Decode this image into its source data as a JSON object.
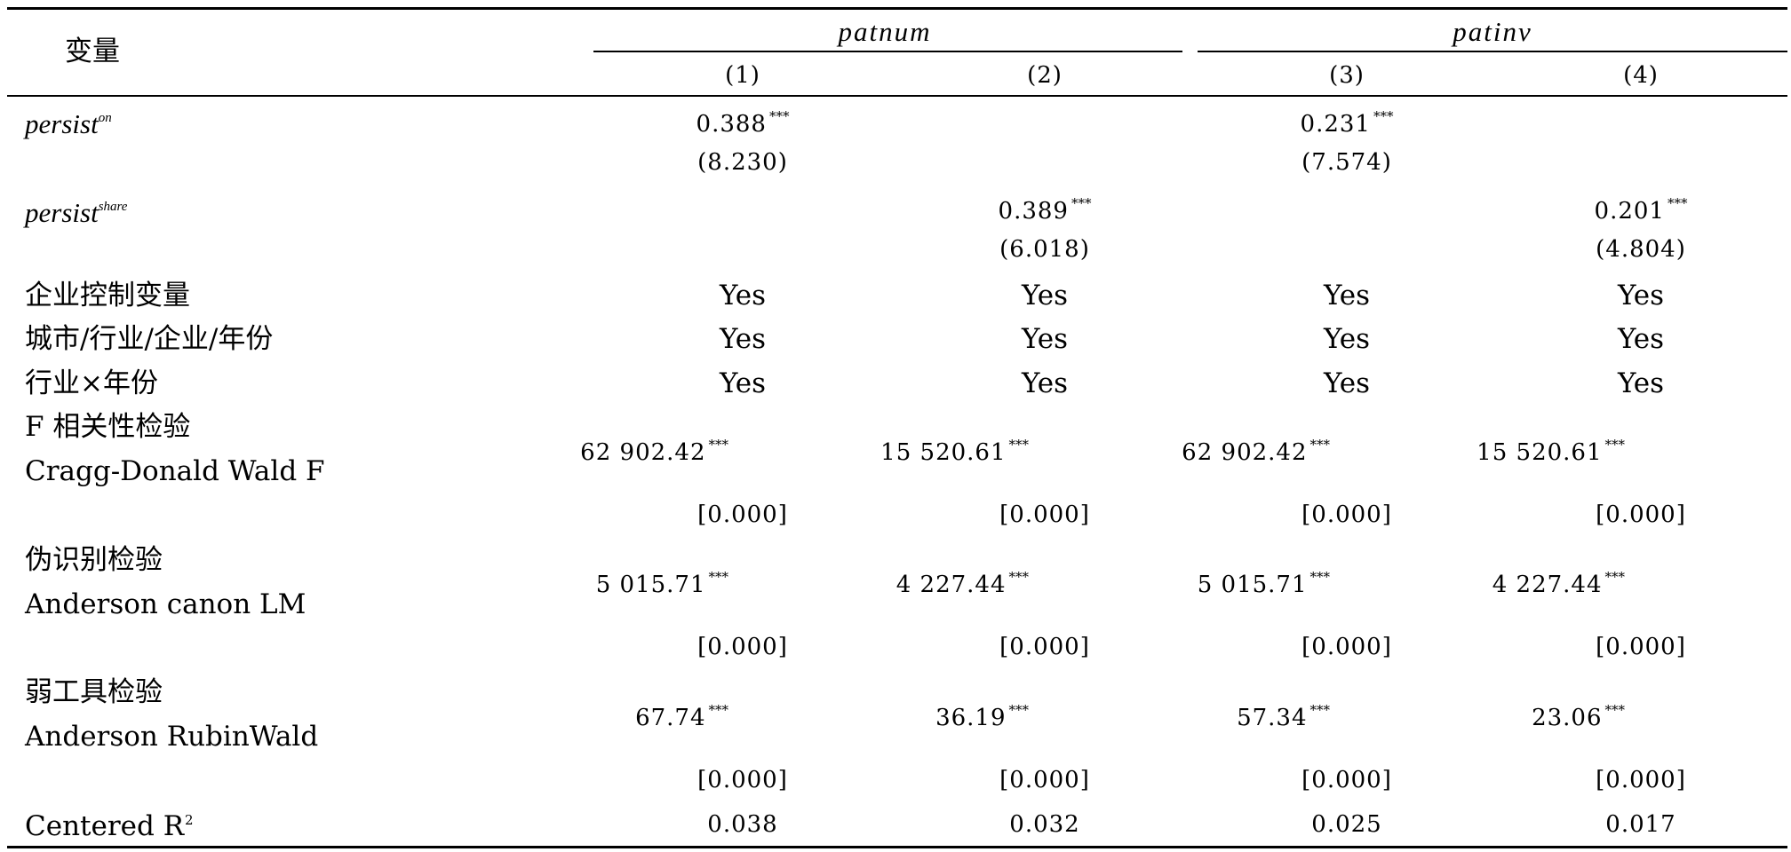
{
  "header": {
    "variable_label": "变量",
    "group1": "patnum",
    "group2": "patinv",
    "col_labels": [
      "(1)",
      "(2)",
      "(3)",
      "(4)"
    ]
  },
  "rows": {
    "persist_on": {
      "base": "persist",
      "sup": "on",
      "c1": "0.388",
      "c1_star": "***",
      "c1_t": "(8.230)",
      "c3": "0.231",
      "c3_star": "***",
      "c3_t": "(7.574)"
    },
    "persist_share": {
      "base": "persist",
      "sup": "share",
      "c2": "0.389",
      "c2_star": "***",
      "c2_t": "(6.018)",
      "c4": "0.201",
      "c4_star": "***",
      "c4_t": "(4.804)"
    },
    "firm_controls": {
      "label": "企业控制变量",
      "values": [
        "Yes",
        "Yes",
        "Yes",
        "Yes"
      ]
    },
    "fe": {
      "label": "城市/行业/企业/年份",
      "values": [
        "Yes",
        "Yes",
        "Yes",
        "Yes"
      ]
    },
    "ind_year": {
      "label": "行业×年份",
      "values": [
        "Yes",
        "Yes",
        "Yes",
        "Yes"
      ]
    },
    "f_test": {
      "label1": "F 相关性检验",
      "label2": "Cragg-Donald Wald F",
      "values": [
        "62 902.42",
        "15 520.61",
        "62 902.42",
        "15 520.61"
      ],
      "star": "***",
      "p": [
        "[0.000]",
        "[0.000]",
        "[0.000]",
        "[0.000]"
      ]
    },
    "underid": {
      "label1": "伪识别检验",
      "label2": "Anderson canon LM",
      "values": [
        "5 015.71",
        "4 227.44",
        "5 015.71",
        "4 227.44"
      ],
      "star": "***",
      "p": [
        "[0.000]",
        "[0.000]",
        "[0.000]",
        "[0.000]"
      ]
    },
    "weakiv": {
      "label1": "弱工具检验",
      "label2": "Anderson RubinWald",
      "values": [
        "67.74",
        "36.19",
        "57.34",
        "23.06"
      ],
      "star": "***",
      "p": [
        "[0.000]",
        "[0.000]",
        "[0.000]",
        "[0.000]"
      ]
    },
    "r2": {
      "label": "Centered R",
      "label_sup": "2",
      "values": [
        "0.038",
        "0.032",
        "0.025",
        "0.017"
      ]
    }
  }
}
